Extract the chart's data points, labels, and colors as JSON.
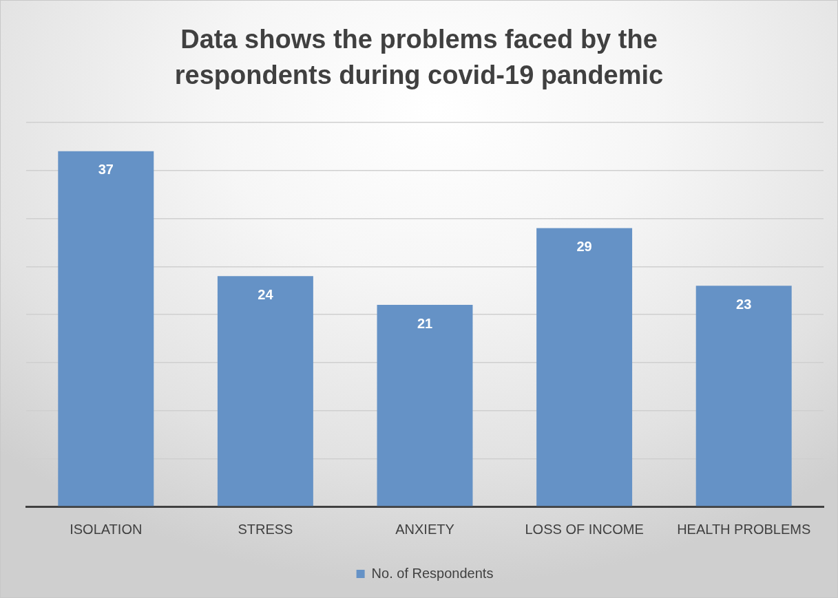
{
  "chart_data": {
    "type": "bar",
    "title": "Data shows the problems faced by the respondents during covid-19 pandemic",
    "categories": [
      "ISOLATION",
      "STRESS",
      "ANXIETY",
      "LOSS OF INCOME",
      "HEALTH PROBLEMS"
    ],
    "series": [
      {
        "name": "No. of Respondents",
        "color": "#6592c6",
        "values": [
          37,
          24,
          21,
          29,
          23
        ]
      }
    ],
    "ylim": [
      0,
      40
    ],
    "yticks": [
      0,
      5,
      10,
      15,
      20,
      25,
      30,
      35,
      40
    ],
    "grid": "y",
    "legend": "bottom",
    "tick_labels": "x",
    "data_labels": true
  }
}
